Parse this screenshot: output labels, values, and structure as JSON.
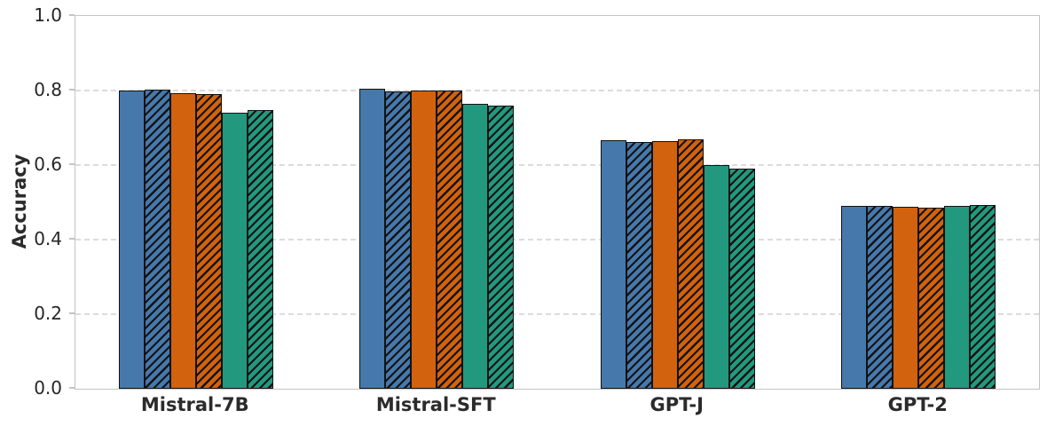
{
  "chart_data": {
    "type": "bar",
    "title": "",
    "xlabel": "",
    "ylabel": "Accuracy",
    "ylim": [
      0.0,
      1.0
    ],
    "yticks": [
      0.0,
      0.2,
      0.4,
      0.6,
      0.8,
      1.0
    ],
    "ytick_labels": [
      "0.0",
      "0.2",
      "0.4",
      "0.6",
      "0.8",
      "1.0"
    ],
    "grid": "horizontal-dashed",
    "legend": "none",
    "categories": [
      "Mistral-7B",
      "Mistral-SFT",
      "GPT-J",
      "GPT-2"
    ],
    "series": [
      {
        "name": "blue-solid",
        "color": "#4678AC",
        "hatch": "none",
        "values": [
          0.8,
          0.805,
          0.667,
          0.49
        ]
      },
      {
        "name": "blue-hatched",
        "color": "#4678AC",
        "hatch": "//",
        "values": [
          0.803,
          0.798,
          0.661,
          0.49
        ]
      },
      {
        "name": "orange-solid",
        "color": "#D2620D",
        "hatch": "none",
        "values": [
          0.794,
          0.801,
          0.664,
          0.489
        ]
      },
      {
        "name": "orange-hatched",
        "color": "#D2620D",
        "hatch": "//",
        "values": [
          0.79,
          0.799,
          0.67,
          0.486
        ]
      },
      {
        "name": "green-solid",
        "color": "#22997F",
        "hatch": "none",
        "values": [
          0.741,
          0.764,
          0.599,
          0.49
        ]
      },
      {
        "name": "green-hatched",
        "color": "#22997F",
        "hatch": "//",
        "values": [
          0.747,
          0.76,
          0.591,
          0.494
        ]
      }
    ],
    "colors": {
      "bar_edge": "#121212",
      "spine": "#c3c3c3",
      "gridline": "#dcdcdc",
      "tick_text": "#262626",
      "background": "#ffffff"
    }
  }
}
